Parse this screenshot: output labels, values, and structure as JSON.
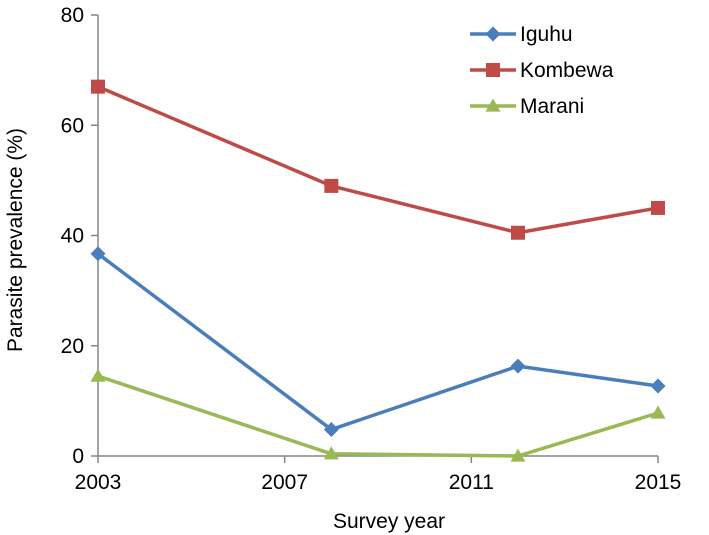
{
  "chart_data": {
    "type": "line",
    "title": "",
    "xlabel": "Survey year",
    "ylabel": "Parasite prevalence (%)",
    "xlim": [
      2003,
      2015
    ],
    "ylim": [
      0,
      80
    ],
    "xticks": [
      2003,
      2007,
      2011,
      2015
    ],
    "yticks": [
      0,
      20,
      40,
      60,
      80
    ],
    "grid": false,
    "legend": "top-right",
    "series": [
      {
        "name": "Iguhu",
        "color": "#4a7ebb",
        "marker": "diamond",
        "points": [
          {
            "x": 2003,
            "y": 36.7
          },
          {
            "x": 2008,
            "y": 4.8
          },
          {
            "x": 2012,
            "y": 16.3
          },
          {
            "x": 2015,
            "y": 12.7
          }
        ]
      },
      {
        "name": "Kombewa",
        "color": "#be4b48",
        "marker": "square",
        "points": [
          {
            "x": 2003,
            "y": 67.0
          },
          {
            "x": 2008,
            "y": 49.0
          },
          {
            "x": 2012,
            "y": 40.5
          },
          {
            "x": 2015,
            "y": 45.0
          }
        ]
      },
      {
        "name": "Marani",
        "color": "#98b954",
        "marker": "triangle",
        "points": [
          {
            "x": 2003,
            "y": 14.5
          },
          {
            "x": 2008,
            "y": 0.4
          },
          {
            "x": 2012,
            "y": 0.0
          },
          {
            "x": 2015,
            "y": 7.8
          }
        ]
      }
    ]
  }
}
